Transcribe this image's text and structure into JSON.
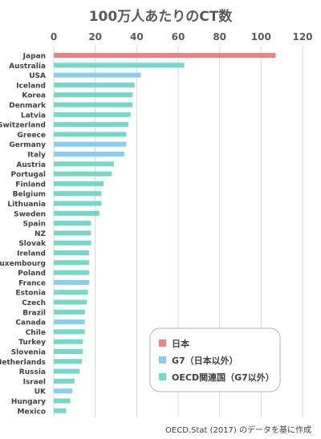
{
  "chart_data": {
    "type": "bar",
    "orientation": "horizontal",
    "title": "100万人あたりのCT数",
    "xlim": [
      0,
      120
    ],
    "xticks": [
      0,
      20,
      40,
      60,
      80,
      100,
      120
    ],
    "grid": true,
    "categories": [
      "Japan",
      "Australia",
      "USA",
      "Iceland",
      "Korea",
      "Denmark",
      "Latvia",
      "Switzerland",
      "Greece",
      "Germany",
      "Italy",
      "Austria",
      "Portugal",
      "Finland",
      "Belgium",
      "Lithuania",
      "Sweden",
      "Spain",
      "NZ",
      "Slovak",
      "Ireland",
      "Luxembourg",
      "Poland",
      "France",
      "Estonia",
      "Czech",
      "Brazil",
      "Canada",
      "Chile",
      "Turkey",
      "Slovenia",
      "Netherlands",
      "Russia",
      "Israel",
      "UK",
      "Hungary",
      "Mexico"
    ],
    "values": [
      107,
      63,
      42,
      39,
      38,
      38,
      37,
      36,
      35,
      35,
      34,
      29,
      28,
      24,
      23,
      23,
      22,
      18,
      18,
      18,
      17,
      17,
      17,
      17,
      16.5,
      16,
      15,
      15,
      15,
      14,
      14,
      13.5,
      12.5,
      10,
      9,
      8,
      6
    ],
    "groups": [
      "japan",
      "oecd",
      "g7",
      "oecd",
      "oecd",
      "oecd",
      "oecd",
      "oecd",
      "oecd",
      "g7",
      "g7",
      "oecd",
      "oecd",
      "oecd",
      "oecd",
      "oecd",
      "oecd",
      "oecd",
      "oecd",
      "oecd",
      "oecd",
      "oecd",
      "oecd",
      "g7",
      "oecd",
      "oecd",
      "oecd",
      "g7",
      "oecd",
      "oecd",
      "oecd",
      "oecd",
      "oecd",
      "oecd",
      "g7",
      "oecd",
      "oecd"
    ],
    "legend": {
      "placement": "bottom-right",
      "entries": [
        {
          "key": "japan",
          "label": "日本",
          "color": "#ef8080"
        },
        {
          "key": "g7",
          "label": "G7（日本以外）",
          "color": "#87cef2"
        },
        {
          "key": "oecd",
          "label": "OECD関連国（G7以外）",
          "color": "#72d9c6"
        }
      ]
    },
    "source": "OECD.Stat (2017) のデータを基に作成"
  }
}
